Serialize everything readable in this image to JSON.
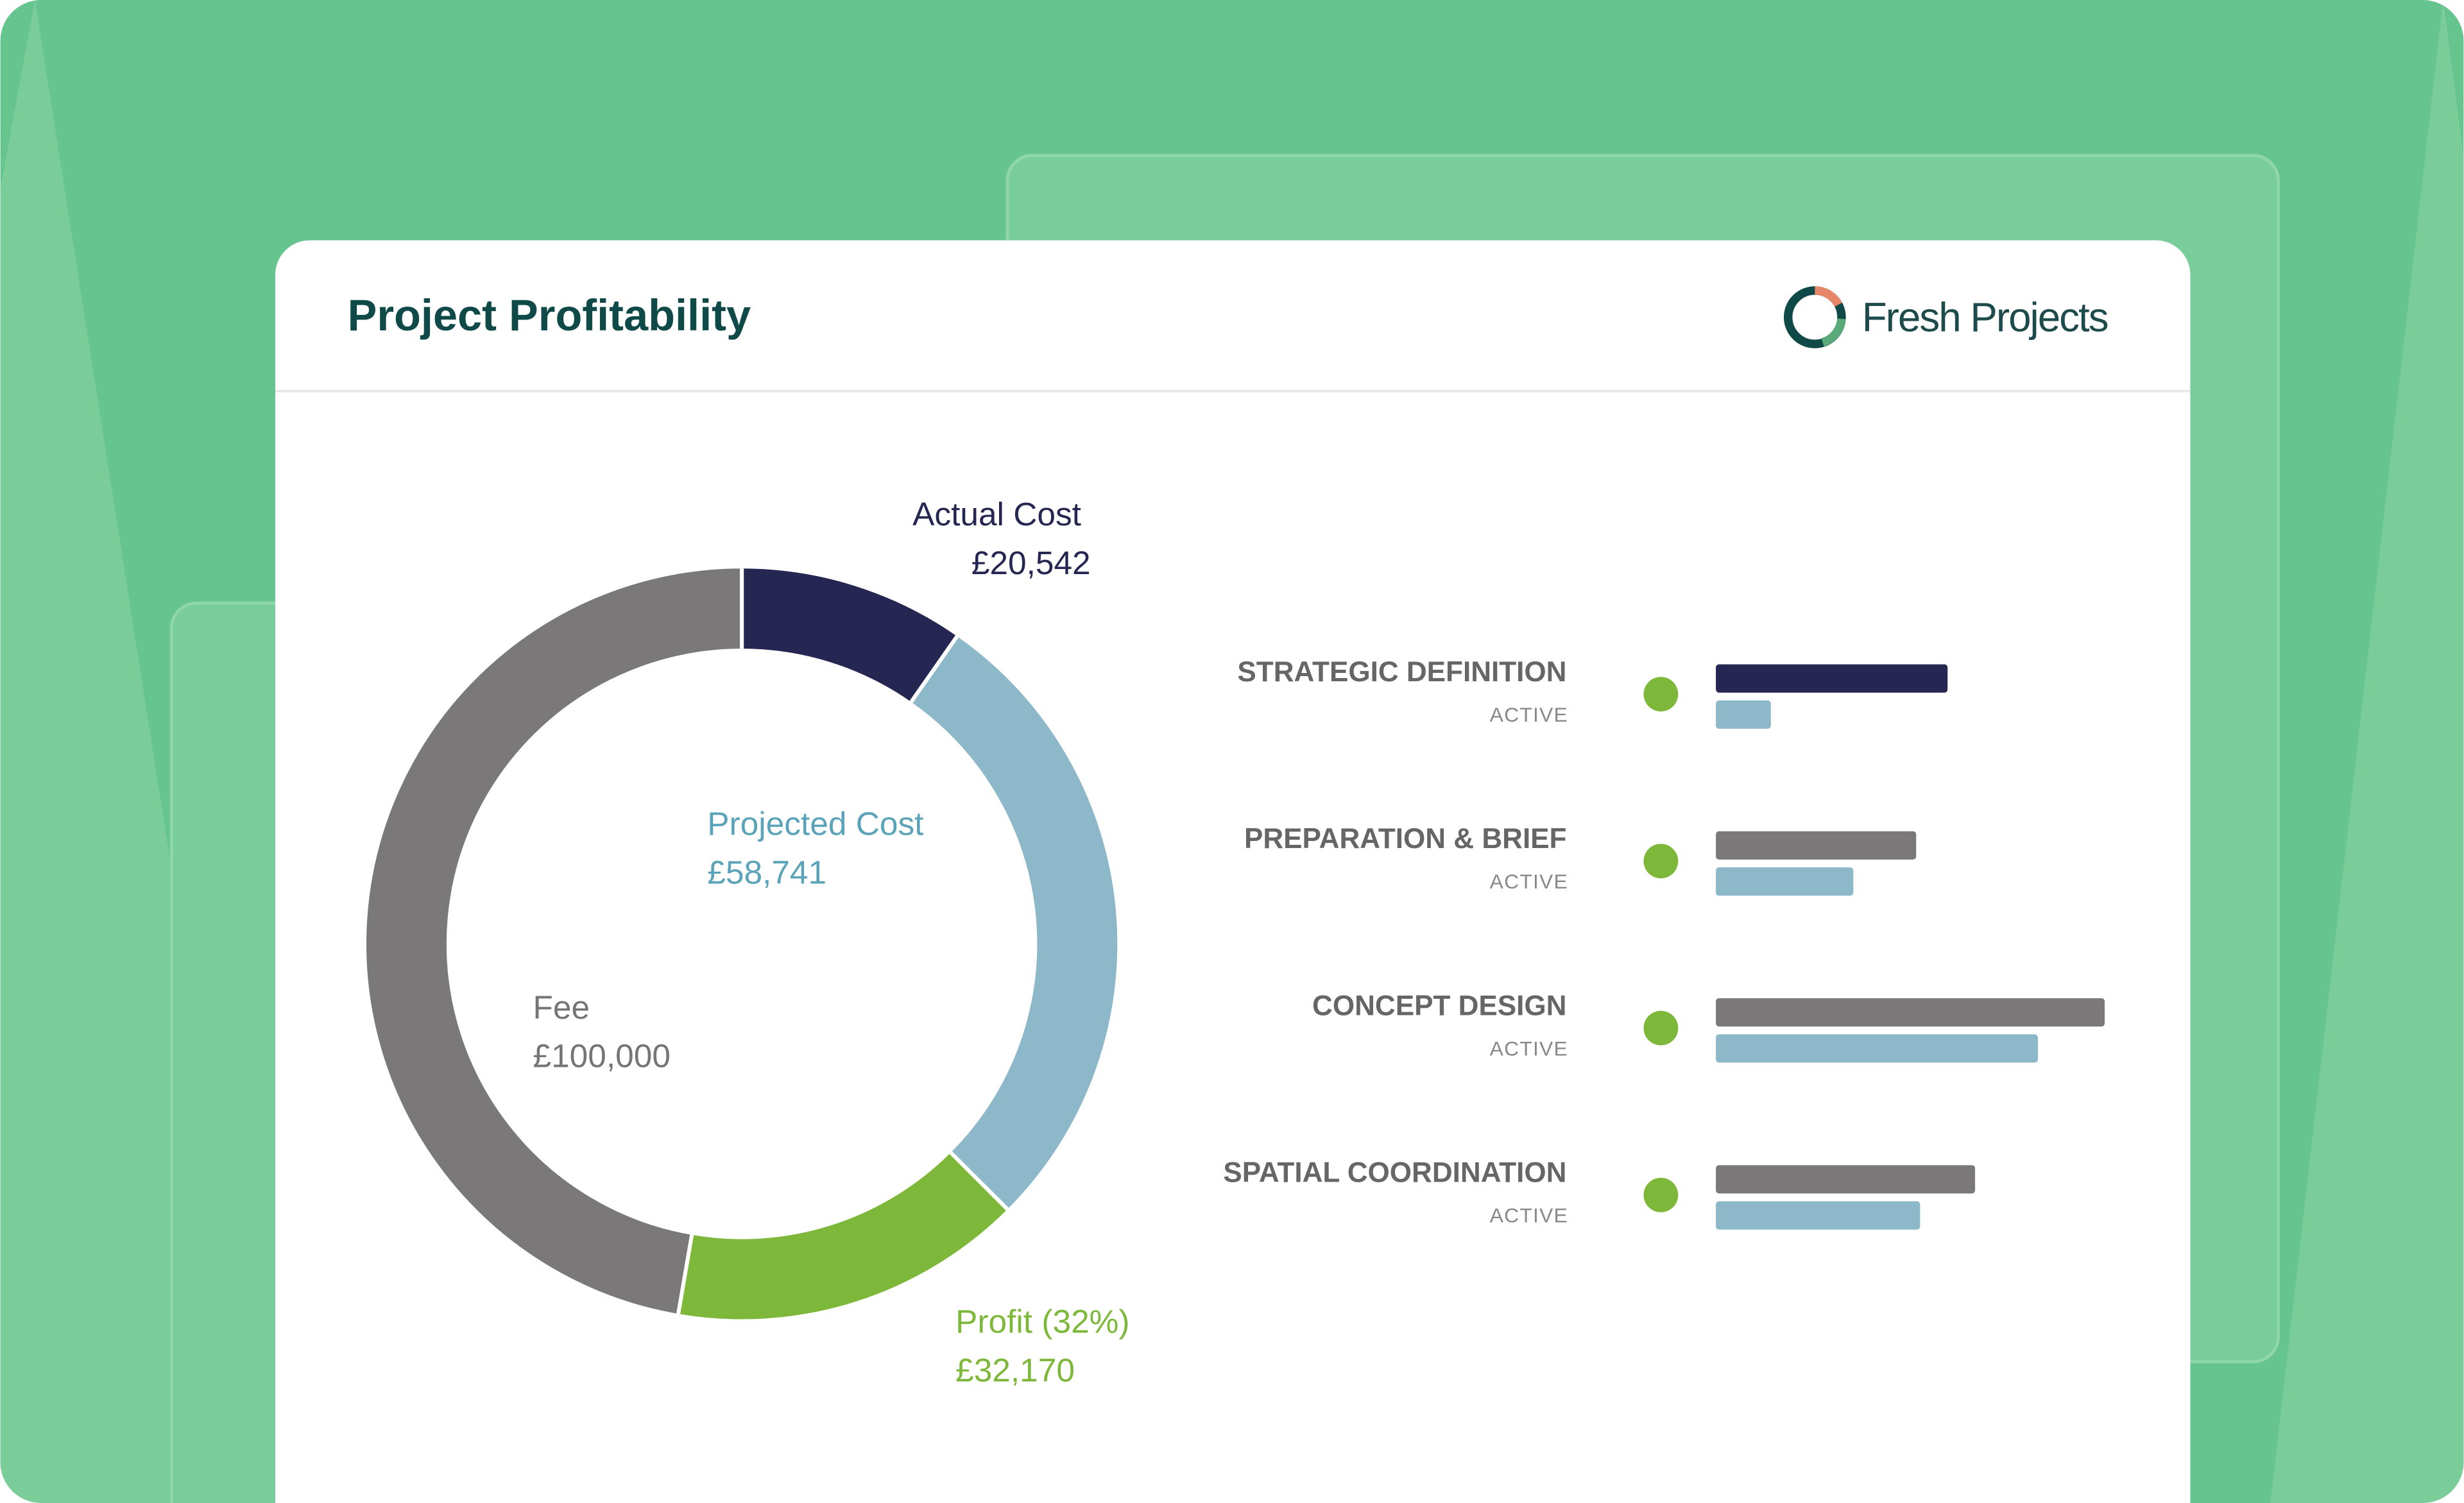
{
  "header": {
    "title": "Project Profitability",
    "logo": "Fresh Projects"
  },
  "chart_data": [
    {
      "type": "donut",
      "categories": [
        "Actual Cost",
        "Projected Cost",
        "Profit (32%)",
        "Fee"
      ],
      "values": [
        20542,
        58741,
        32170,
        100000
      ],
      "value_labels": [
        "£20,542",
        "£58,741",
        "£32,170",
        "£100,000"
      ],
      "colors": [
        "#262652",
        "#8db8c9",
        "#7db83a",
        "#7a7878"
      ]
    },
    {
      "type": "hbar",
      "categories": [
        "STRATEGIC DEFINITION",
        "PREPARATION & BRIEF",
        "CONCEPT DESIGN",
        "SPATIAL COORDINATION"
      ],
      "status_labels": [
        "ACTIVE",
        "ACTIVE",
        "ACTIVE",
        "ACTIVE"
      ],
      "series": [
        {
          "values": [
            59,
            51,
            99,
            66
          ],
          "colors": [
            "#262652",
            "#7a7878",
            "#7a7878",
            "#7a7878"
          ]
        },
        {
          "values": [
            14,
            35,
            82,
            52
          ],
          "color": "#8db8c9"
        }
      ],
      "xlim": [
        0,
        100
      ]
    }
  ]
}
